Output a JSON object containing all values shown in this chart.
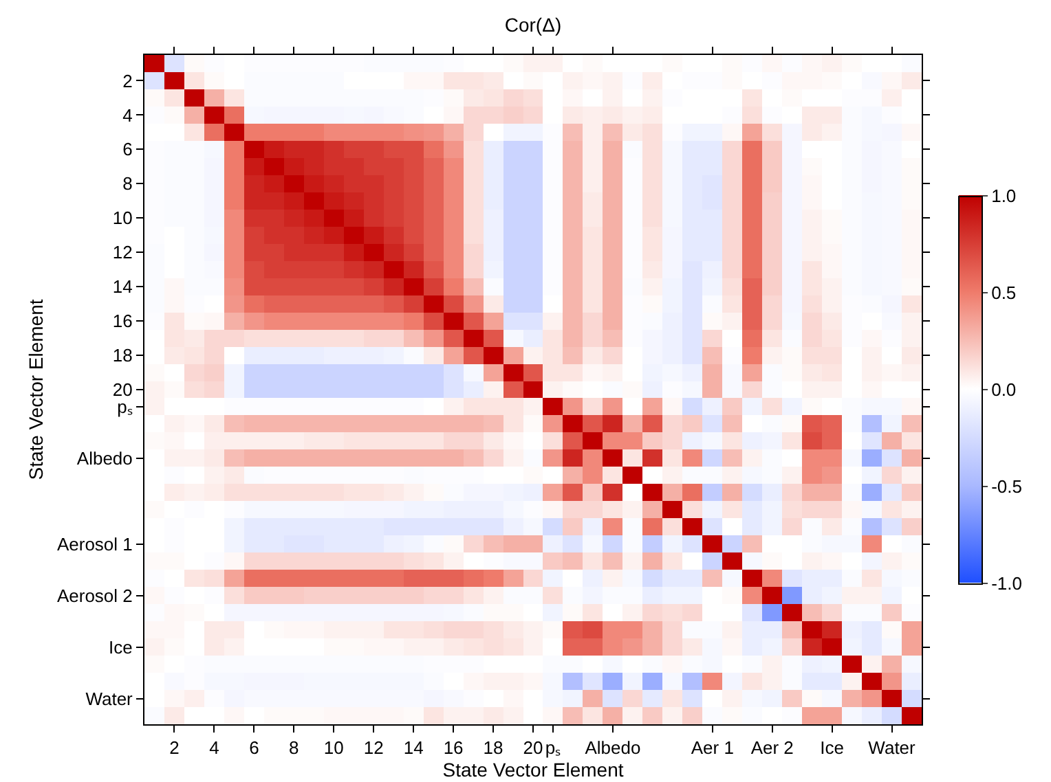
{
  "chart_data": {
    "type": "heatmap",
    "title": "Cor(Δ)",
    "xlabel": "State Vector Element",
    "ylabel": "State Vector Element",
    "categories": [
      null,
      "2",
      null,
      "4",
      null,
      "6",
      null,
      "8",
      null,
      "10",
      null,
      "12",
      null,
      "14",
      null,
      "16",
      null,
      "18",
      null,
      "20",
      "pₛ",
      null,
      null,
      "Albedo",
      null,
      null,
      null,
      null,
      "Aer 1",
      null,
      null,
      "Aer 2",
      null,
      null,
      "Ice",
      null,
      null,
      "Water",
      null
    ],
    "y_categories": [
      null,
      "2",
      null,
      "4",
      null,
      "6",
      null,
      "8",
      null,
      "10",
      null,
      "12",
      null,
      "14",
      null,
      "16",
      null,
      "18",
      null,
      "20",
      "pₛ",
      null,
      null,
      "Albedo",
      null,
      null,
      null,
      null,
      "Aerosol 1",
      null,
      null,
      "Aerosol 2",
      null,
      null,
      "Ice",
      null,
      null,
      "Water",
      null
    ],
    "clim": [
      -1,
      1
    ],
    "cticks": [
      {
        "value": -1,
        "label": "-1.0"
      },
      {
        "value": -0.5,
        "label": "-0.5"
      },
      {
        "value": 0,
        "label": "0.0"
      },
      {
        "value": 0.5,
        "label": "0.5"
      },
      {
        "value": 1,
        "label": "1.0"
      }
    ],
    "cells": [
      [
        1,
        -0.2,
        0.02,
        -0.02,
        0,
        -0.02,
        -0.02,
        -0.02,
        -0.02,
        -0.02,
        -0.02,
        -0.03,
        -0.03,
        -0.03,
        -0.03,
        -0.02,
        0,
        0,
        0.02,
        0.05,
        0.05,
        0,
        0.02,
        0,
        0,
        0,
        0.02,
        0,
        0,
        0.02,
        -0.02,
        0.03,
        -0.02,
        0.03,
        0.05,
        0.02,
        0,
        0,
        -0.03
      ],
      [
        -0.2,
        1,
        0.1,
        0.02,
        0,
        -0.03,
        -0.03,
        -0.03,
        -0.03,
        -0.03,
        0,
        0,
        0,
        0.03,
        0.03,
        0.1,
        0.1,
        0.08,
        0,
        0.02,
        0,
        0.05,
        0.03,
        0.05,
        -0.02,
        0.07,
        0,
        -0.02,
        -0.02,
        0.02,
        0,
        -0.02,
        0.03,
        0.03,
        0.02,
        0,
        -0.04,
        0.03,
        0.08
      ],
      [
        0.02,
        0.1,
        1,
        0.3,
        0.1,
        -0.03,
        -0.03,
        -0.03,
        -0.03,
        -0.03,
        -0.03,
        -0.03,
        -0.03,
        -0.03,
        -0.02,
        0.02,
        0.08,
        0.1,
        0.15,
        0.12,
        0,
        0.03,
        0,
        0.05,
        0,
        0.05,
        -0.02,
        0,
        0,
        0,
        0.1,
        0,
        0.02,
        0,
        0,
        -0.02,
        -0.02,
        0.06,
        0
      ],
      [
        -0.02,
        0.02,
        0.3,
        1,
        0.55,
        -0.05,
        -0.06,
        -0.06,
        -0.06,
        -0.06,
        -0.05,
        -0.06,
        -0.04,
        -0.03,
        0,
        0.03,
        0.15,
        0.15,
        0.18,
        0.15,
        0,
        0.08,
        0.06,
        0.08,
        0.05,
        0.07,
        0,
        0,
        0,
        -0.02,
        0.12,
        -0.02,
        0,
        0.08,
        0.08,
        -0.03,
        -0.05,
        -0.02,
        0
      ],
      [
        0,
        0,
        0.1,
        0.55,
        1,
        0.5,
        0.5,
        0.5,
        0.5,
        0.45,
        0.45,
        0.45,
        0.45,
        0.42,
        0.4,
        0.3,
        0.15,
        0,
        -0.08,
        -0.08,
        -0.02,
        0.25,
        0.06,
        0.25,
        0.08,
        0.12,
        -0.02,
        -0.08,
        -0.08,
        0.03,
        0.35,
        0.12,
        -0.06,
        0.08,
        0.05,
        -0.03,
        -0.05,
        -0.06,
        0.03
      ],
      [
        -0.02,
        -0.03,
        -0.03,
        -0.05,
        0.5,
        1,
        0.9,
        0.85,
        0.85,
        0.8,
        0.75,
        0.75,
        0.7,
        0.7,
        0.55,
        0.4,
        0.12,
        -0.12,
        -0.3,
        -0.3,
        -0.02,
        0.28,
        0.06,
        0.3,
        -0.03,
        0.12,
        -0.05,
        -0.15,
        -0.15,
        0.15,
        0.55,
        0.2,
        -0.06,
        0,
        0,
        -0.03,
        -0.06,
        -0.04,
        0
      ],
      [
        -0.02,
        -0.03,
        -0.03,
        -0.06,
        0.5,
        0.9,
        1,
        0.9,
        0.85,
        0.8,
        0.8,
        0.75,
        0.75,
        0.7,
        0.6,
        0.45,
        0.12,
        -0.12,
        -0.3,
        -0.3,
        -0.02,
        0.28,
        0.06,
        0.3,
        -0.02,
        0.12,
        -0.05,
        -0.15,
        -0.15,
        0.15,
        0.55,
        0.2,
        -0.06,
        0.02,
        0,
        -0.03,
        -0.06,
        -0.04,
        0.02
      ],
      [
        -0.02,
        -0.03,
        -0.03,
        -0.06,
        0.5,
        0.85,
        0.9,
        1,
        0.9,
        0.85,
        0.8,
        0.8,
        0.75,
        0.7,
        0.6,
        0.45,
        0.12,
        -0.12,
        -0.3,
        -0.3,
        -0.02,
        0.28,
        0.06,
        0.3,
        -0.02,
        0.12,
        -0.05,
        -0.15,
        -0.18,
        0.15,
        0.55,
        0.2,
        -0.06,
        0.03,
        0,
        -0.03,
        -0.06,
        -0.04,
        0.02
      ],
      [
        -0.02,
        -0.03,
        -0.03,
        -0.06,
        0.5,
        0.85,
        0.85,
        0.9,
        1,
        0.9,
        0.85,
        0.8,
        0.75,
        0.7,
        0.6,
        0.45,
        0.12,
        -0.12,
        -0.3,
        -0.3,
        -0.02,
        0.28,
        0.08,
        0.3,
        -0.02,
        0.12,
        -0.05,
        -0.15,
        -0.18,
        0.15,
        0.55,
        0.18,
        -0.06,
        0.03,
        0,
        -0.03,
        -0.05,
        -0.04,
        0.02
      ],
      [
        -0.02,
        -0.03,
        -0.03,
        -0.06,
        0.45,
        0.8,
        0.8,
        0.85,
        0.9,
        1,
        0.9,
        0.8,
        0.75,
        0.7,
        0.6,
        0.45,
        0.12,
        -0.1,
        -0.3,
        -0.3,
        -0.02,
        0.28,
        0.08,
        0.3,
        -0.02,
        0.12,
        -0.05,
        -0.15,
        -0.15,
        0.15,
        0.55,
        0.18,
        -0.06,
        0.05,
        0.02,
        -0.03,
        -0.05,
        -0.04,
        0.03
      ],
      [
        -0.02,
        0,
        -0.03,
        -0.05,
        0.45,
        0.75,
        0.8,
        0.8,
        0.85,
        0.9,
        1,
        0.9,
        0.8,
        0.7,
        0.6,
        0.45,
        0.12,
        -0.1,
        -0.3,
        -0.3,
        -0.02,
        0.28,
        0.1,
        0.3,
        -0.02,
        0.1,
        -0.06,
        -0.15,
        -0.15,
        0.15,
        0.55,
        0.18,
        -0.06,
        0.05,
        0.02,
        -0.03,
        -0.05,
        -0.04,
        0.03
      ],
      [
        -0.03,
        0,
        -0.03,
        -0.06,
        0.45,
        0.75,
        0.75,
        0.8,
        0.8,
        0.8,
        0.9,
        1,
        0.85,
        0.75,
        0.6,
        0.45,
        0.15,
        -0.1,
        -0.3,
        -0.3,
        -0.02,
        0.28,
        0.1,
        0.3,
        -0.02,
        0.1,
        -0.06,
        -0.15,
        -0.15,
        0.15,
        0.55,
        0.18,
        -0.06,
        0.05,
        0.03,
        -0.03,
        -0.05,
        -0.04,
        0.03
      ],
      [
        -0.03,
        0,
        -0.03,
        -0.04,
        0.45,
        0.7,
        0.75,
        0.75,
        0.75,
        0.75,
        0.8,
        0.85,
        1,
        0.85,
        0.65,
        0.45,
        0.15,
        -0.08,
        -0.3,
        -0.3,
        -0.02,
        0.28,
        0.1,
        0.3,
        -0.02,
        0.08,
        -0.06,
        -0.18,
        -0.1,
        0.15,
        0.55,
        0.18,
        -0.06,
        0.1,
        0.03,
        -0.03,
        -0.05,
        -0.04,
        0.03
      ],
      [
        -0.03,
        0.03,
        -0.03,
        -0.03,
        0.42,
        0.7,
        0.7,
        0.7,
        0.7,
        0.7,
        0.7,
        0.75,
        0.85,
        1,
        0.75,
        0.5,
        0.25,
        -0.03,
        -0.3,
        -0.3,
        -0.02,
        0.28,
        0.1,
        0.3,
        -0.03,
        0.05,
        -0.08,
        -0.18,
        -0.08,
        0.12,
        0.6,
        0.18,
        -0.06,
        0.1,
        0.05,
        -0.03,
        -0.05,
        -0.04,
        0.02
      ],
      [
        -0.03,
        0.03,
        -0.02,
        0,
        0.4,
        0.55,
        0.6,
        0.6,
        0.6,
        0.6,
        0.6,
        0.6,
        0.65,
        0.75,
        1,
        0.7,
        0.4,
        0.08,
        -0.3,
        -0.3,
        0,
        0.28,
        0.1,
        0.3,
        -0.02,
        0.02,
        -0.08,
        -0.18,
        -0.03,
        0.1,
        0.6,
        0.15,
        -0.06,
        0.12,
        0.05,
        -0.02,
        -0.03,
        -0.06,
        0.1
      ],
      [
        -0.02,
        0.1,
        0.02,
        0.03,
        0.3,
        0.4,
        0.45,
        0.45,
        0.45,
        0.45,
        0.45,
        0.45,
        0.45,
        0.5,
        0.7,
        1,
        0.65,
        0.35,
        -0.2,
        -0.2,
        0.05,
        0.28,
        0.15,
        0.3,
        -0.02,
        -0.03,
        -0.1,
        -0.18,
        0.02,
        0.05,
        0.6,
        0.15,
        -0.05,
        0.15,
        0.08,
        -0.02,
        0,
        -0.04,
        0.05
      ],
      [
        0,
        0.1,
        0.08,
        0.15,
        0.15,
        0.12,
        0.12,
        0.12,
        0.12,
        0.12,
        0.12,
        0.15,
        0.15,
        0.25,
        0.4,
        0.65,
        1,
        0.65,
        -0.05,
        -0.12,
        0.1,
        0.28,
        0.15,
        0.25,
        -0.02,
        -0.06,
        -0.1,
        -0.18,
        0.15,
        0,
        0.55,
        0.1,
        -0.03,
        0.15,
        0.1,
        -0.02,
        0.03,
        -0.02,
        0.05
      ],
      [
        0,
        0.08,
        0.1,
        0.15,
        0,
        -0.12,
        -0.12,
        -0.12,
        -0.12,
        -0.1,
        -0.1,
        -0.1,
        -0.08,
        -0.03,
        0.08,
        0.35,
        0.65,
        1,
        0.35,
        0.05,
        0.1,
        0.25,
        0.08,
        0.15,
        0,
        -0.06,
        -0.1,
        -0.18,
        0.25,
        -0.02,
        0.5,
        0.05,
        0.02,
        0.12,
        0.12,
        0,
        0.05,
        0,
        0.08
      ],
      [
        0.02,
        0,
        0.15,
        0.18,
        -0.08,
        -0.3,
        -0.3,
        -0.3,
        -0.3,
        -0.3,
        -0.3,
        -0.3,
        -0.3,
        -0.3,
        -0.3,
        -0.2,
        -0.05,
        0.35,
        1,
        0.65,
        0.1,
        0.1,
        0.03,
        0.05,
        0,
        -0.08,
        -0.05,
        -0.1,
        0.3,
        -0.04,
        0.35,
        -0.03,
        0.02,
        0.08,
        0.1,
        0,
        0.05,
        0.03,
        0.05
      ],
      [
        0.05,
        0.02,
        0.12,
        0.15,
        -0.08,
        -0.3,
        -0.3,
        -0.3,
        -0.3,
        -0.3,
        -0.3,
        -0.3,
        -0.3,
        -0.3,
        -0.3,
        -0.2,
        -0.12,
        0.05,
        0.65,
        1,
        0.05,
        0.02,
        0,
        -0.03,
        0.02,
        -0.1,
        -0.02,
        -0.05,
        0.3,
        -0.04,
        0.15,
        -0.03,
        0,
        0.05,
        0.05,
        0,
        0.03,
        0,
        0
      ],
      [
        0.05,
        0,
        0,
        0,
        -0.02,
        -0.02,
        -0.02,
        -0.02,
        -0.02,
        -0.02,
        -0.02,
        -0.02,
        -0.02,
        -0.02,
        0,
        0.05,
        0.1,
        0.1,
        0.1,
        0.05,
        1,
        0.4,
        0.12,
        0.4,
        0,
        0.35,
        0.03,
        -0.25,
        -0.1,
        0.2,
        -0.08,
        0.12,
        -0.08,
        0.02,
        0,
        -0.03,
        -0.05,
        -0.05,
        0.03
      ],
      [
        0,
        0.05,
        0.03,
        0.08,
        0.25,
        0.28,
        0.28,
        0.28,
        0.28,
        0.28,
        0.28,
        0.28,
        0.28,
        0.28,
        0.28,
        0.28,
        0.28,
        0.25,
        0.1,
        0.02,
        0.4,
        1,
        0.65,
        0.85,
        0.3,
        0.65,
        0.15,
        0.2,
        -0.2,
        0.25,
        0,
        -0.03,
        0.02,
        0.65,
        0.6,
        -0.03,
        -0.45,
        -0.08,
        0.25
      ],
      [
        0.02,
        0.03,
        0,
        0.06,
        0.06,
        0.06,
        0.06,
        0.06,
        0.08,
        0.08,
        0.1,
        0.1,
        0.1,
        0.1,
        0.1,
        0.15,
        0.15,
        0.08,
        0.03,
        0,
        0.12,
        0.65,
        1,
        0.45,
        0.45,
        0.2,
        0.15,
        -0.1,
        -0.05,
        0.1,
        -0.1,
        -0.07,
        0.1,
        0.7,
        0.6,
        0,
        -0.18,
        0.3,
        0.1
      ],
      [
        0,
        0.05,
        0.05,
        0.08,
        0.25,
        0.3,
        0.3,
        0.3,
        0.3,
        0.3,
        0.3,
        0.3,
        0.3,
        0.3,
        0.3,
        0.3,
        0.25,
        0.15,
        0.05,
        -0.03,
        0.4,
        0.85,
        0.45,
        1,
        0.1,
        0.8,
        0.1,
        0.45,
        -0.28,
        0.25,
        0.05,
        -0.03,
        0,
        0.45,
        0.45,
        -0.05,
        -0.55,
        -0.2,
        0.3
      ],
      [
        0,
        -0.02,
        0,
        0.05,
        0.08,
        -0.03,
        -0.02,
        -0.02,
        -0.02,
        -0.02,
        -0.02,
        -0.02,
        -0.02,
        -0.03,
        -0.02,
        -0.02,
        -0.02,
        0,
        0,
        0.02,
        0,
        0.3,
        0.45,
        0.1,
        1,
        0,
        0.05,
        -0.03,
        -0.03,
        0.05,
        -0.05,
        -0.03,
        0.05,
        0.45,
        0.4,
        0,
        -0.08,
        0.15,
        0.05
      ],
      [
        0,
        0.07,
        0.05,
        0.07,
        0.12,
        0.12,
        0.12,
        0.12,
        0.12,
        0.12,
        0.1,
        0.1,
        0.08,
        0.05,
        0.02,
        -0.03,
        -0.06,
        -0.06,
        -0.08,
        -0.1,
        0.35,
        0.65,
        0.2,
        0.8,
        0,
        1,
        0.3,
        0.55,
        -0.35,
        0.3,
        -0.25,
        -0.12,
        0.15,
        0.3,
        0.3,
        -0.03,
        -0.55,
        -0.15,
        0.2
      ],
      [
        0.02,
        0,
        -0.02,
        0,
        -0.02,
        -0.05,
        -0.05,
        -0.05,
        -0.05,
        -0.05,
        -0.06,
        -0.06,
        -0.06,
        -0.08,
        -0.08,
        -0.1,
        -0.1,
        -0.1,
        -0.05,
        -0.02,
        0.03,
        0.15,
        0.15,
        0.1,
        0.05,
        0.3,
        1,
        0.12,
        -0.08,
        0.1,
        -0.15,
        -0.08,
        0.12,
        0.15,
        0.15,
        0.03,
        -0.05,
        0.1,
        0.05
      ],
      [
        0,
        -0.02,
        0,
        0,
        -0.08,
        -0.15,
        -0.15,
        -0.15,
        -0.15,
        -0.15,
        -0.15,
        -0.15,
        -0.18,
        -0.18,
        -0.18,
        -0.18,
        -0.18,
        -0.18,
        -0.1,
        -0.05,
        -0.25,
        0.2,
        -0.1,
        0.45,
        -0.03,
        0.55,
        0.12,
        1,
        -0.2,
        0,
        -0.15,
        -0.08,
        0.15,
        -0.03,
        0.08,
        -0.03,
        -0.45,
        -0.2,
        0.18
      ],
      [
        0,
        -0.02,
        0,
        0,
        -0.08,
        -0.15,
        -0.15,
        -0.18,
        -0.18,
        -0.15,
        -0.15,
        -0.15,
        -0.1,
        -0.08,
        -0.03,
        0.02,
        0.15,
        0.25,
        0.3,
        0.3,
        -0.1,
        -0.2,
        -0.05,
        -0.28,
        -0.03,
        -0.35,
        -0.08,
        -0.2,
        1,
        -0.3,
        0.25,
        0,
        0,
        -0.03,
        -0.05,
        -0.05,
        0.45,
        0,
        -0.03
      ],
      [
        0.02,
        0.02,
        0,
        -0.02,
        0.03,
        0.15,
        0.15,
        0.15,
        0.15,
        0.15,
        0.15,
        0.15,
        0.15,
        0.12,
        0.1,
        0.05,
        0,
        -0.02,
        -0.04,
        -0.04,
        0.2,
        0.25,
        0.1,
        0.25,
        0.05,
        0.3,
        0.1,
        0,
        -0.3,
        1,
        -0.05,
        0.02,
        0,
        0.05,
        0.03,
        0,
        -0.07,
        0.05,
        0.02
      ],
      [
        -0.02,
        0,
        0.1,
        0.12,
        0.35,
        0.55,
        0.55,
        0.55,
        0.55,
        0.55,
        0.55,
        0.55,
        0.55,
        0.6,
        0.6,
        0.6,
        0.55,
        0.5,
        0.35,
        0.15,
        -0.08,
        0,
        -0.1,
        0.05,
        -0.05,
        -0.25,
        -0.15,
        -0.15,
        0.25,
        -0.05,
        1,
        0.45,
        -0.18,
        -0.12,
        -0.12,
        -0.03,
        0.1,
        -0.05,
        -0.03
      ],
      [
        0.03,
        -0.02,
        0,
        -0.02,
        0.12,
        0.2,
        0.2,
        0.2,
        0.18,
        0.18,
        0.18,
        0.18,
        0.18,
        0.18,
        0.15,
        0.15,
        0.1,
        0.05,
        -0.03,
        -0.03,
        0.12,
        -0.03,
        -0.07,
        -0.03,
        -0.03,
        -0.12,
        -0.08,
        -0.08,
        0,
        0.02,
        0.45,
        1,
        -0.65,
        -0.12,
        -0.08,
        0.05,
        0.05,
        -0.08,
        0
      ],
      [
        -0.02,
        0.03,
        0.02,
        0,
        -0.06,
        -0.06,
        -0.06,
        -0.06,
        -0.06,
        -0.06,
        -0.06,
        -0.06,
        -0.06,
        -0.06,
        -0.06,
        -0.05,
        -0.03,
        0.02,
        0.02,
        0,
        -0.08,
        0.02,
        0.1,
        0,
        0.05,
        0.15,
        0.12,
        0.15,
        0,
        0,
        -0.18,
        -0.65,
        1,
        0.25,
        0.15,
        -0.03,
        -0.03,
        0.2,
        -0.02
      ],
      [
        0.03,
        0.03,
        0,
        0.08,
        0.08,
        0,
        0.02,
        0.03,
        0.03,
        0.05,
        0.05,
        0.05,
        0.1,
        0.1,
        0.12,
        0.15,
        0.15,
        0.12,
        0.08,
        0.05,
        0.02,
        0.65,
        0.7,
        0.45,
        0.45,
        0.3,
        0.15,
        -0.03,
        -0.03,
        0.05,
        -0.12,
        -0.12,
        0.25,
        1,
        0.85,
        -0.1,
        -0.15,
        0.02,
        0.35
      ],
      [
        0.05,
        0.02,
        0,
        0.08,
        0.05,
        0,
        0,
        0,
        0,
        0.02,
        0.02,
        0.03,
        0.03,
        0.05,
        0.05,
        0.08,
        0.1,
        0.12,
        0.1,
        0.05,
        0,
        0.6,
        0.6,
        0.45,
        0.4,
        0.3,
        0.15,
        0.08,
        -0.05,
        0.03,
        -0.12,
        -0.08,
        0.15,
        0.85,
        1,
        -0.08,
        -0.15,
        -0.05,
        0.35
      ],
      [
        0.02,
        0,
        -0.02,
        -0.03,
        -0.03,
        -0.03,
        -0.03,
        -0.03,
        -0.03,
        -0.03,
        -0.03,
        -0.03,
        -0.03,
        -0.03,
        -0.02,
        -0.02,
        -0.02,
        0,
        0,
        0,
        -0.03,
        -0.03,
        0,
        -0.05,
        0,
        -0.03,
        0.03,
        -0.03,
        -0.05,
        0,
        -0.03,
        0.05,
        -0.03,
        -0.1,
        -0.08,
        1,
        0.05,
        0.3,
        -0.05
      ],
      [
        0,
        -0.04,
        -0.02,
        -0.05,
        -0.05,
        -0.06,
        -0.06,
        -0.06,
        -0.05,
        -0.05,
        -0.05,
        -0.05,
        -0.05,
        -0.05,
        -0.03,
        0,
        0.03,
        0.05,
        0.05,
        0.03,
        -0.05,
        -0.45,
        -0.18,
        -0.55,
        -0.08,
        -0.55,
        -0.05,
        -0.45,
        0.45,
        -0.07,
        0.1,
        0.05,
        -0.03,
        -0.15,
        -0.15,
        0.05,
        1,
        0.4,
        -0.12
      ],
      [
        0,
        0.03,
        0.06,
        -0.02,
        -0.06,
        -0.04,
        -0.04,
        -0.04,
        -0.04,
        -0.04,
        -0.04,
        -0.04,
        -0.04,
        -0.04,
        -0.06,
        -0.04,
        -0.02,
        0,
        0.03,
        0,
        -0.05,
        -0.08,
        0.3,
        -0.2,
        0.15,
        -0.15,
        0.1,
        -0.2,
        0,
        0.05,
        -0.05,
        -0.08,
        0.2,
        0.02,
        -0.05,
        0.3,
        0.4,
        1,
        -0.25
      ],
      [
        -0.03,
        0.08,
        0,
        0,
        0.03,
        0,
        0.02,
        0.02,
        0.02,
        0.03,
        0.03,
        0.03,
        0.03,
        0.02,
        0.1,
        0.05,
        0.05,
        0.08,
        0.05,
        0,
        0.03,
        0.25,
        0.1,
        0.3,
        0.05,
        0.2,
        0.05,
        0.18,
        -0.03,
        0.02,
        -0.03,
        0,
        -0.02,
        0.35,
        0.35,
        -0.05,
        -0.12,
        -0.25,
        1
      ]
    ]
  }
}
